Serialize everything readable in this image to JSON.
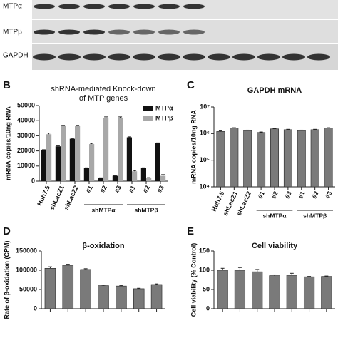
{
  "blot": {
    "labels": [
      "MTPα",
      "MTPβ",
      "GAPDH"
    ]
  },
  "chart_data": [
    {
      "type": "bar",
      "panel": "B",
      "title": [
        "shRNA-mediated Knock-down",
        "of MTP genes"
      ],
      "y_label": "mRNA copies/10ng RNA",
      "categories": [
        "Huh7.5",
        "shLacZ1",
        "shLacZ2",
        "#1",
        "#2",
        "#3",
        "#1",
        "#2",
        "#3"
      ],
      "category_groups": [
        null,
        null,
        null,
        "shMTPα",
        "shMTPα",
        "shMTPα",
        "shMTPβ",
        "shMTPβ",
        "shMTPβ"
      ],
      "series": [
        {
          "name": "MTPα",
          "color": "#111111",
          "values": [
            20500,
            23000,
            28000,
            8500,
            2000,
            3500,
            29000,
            8500,
            25000
          ],
          "errors": [
            300,
            300,
            300,
            300,
            200,
            200,
            300,
            300,
            300
          ]
        },
        {
          "name": "MTPβ",
          "color": "#a8a8a8",
          "values": [
            31000,
            36500,
            36500,
            24500,
            42000,
            42000,
            6500,
            2000,
            3500
          ],
          "errors": [
            800,
            400,
            400,
            500,
            500,
            500,
            500,
            300,
            800
          ]
        }
      ],
      "ylim": [
        0,
        50000
      ],
      "yticks": [
        0,
        10000,
        20000,
        30000,
        40000,
        50000
      ]
    },
    {
      "type": "bar",
      "panel": "C",
      "title": [
        "GAPDH mRNA"
      ],
      "y_label": "mRNA copies/10ng RNA",
      "categories": [
        "Huh7.5",
        "shLacZ1",
        "shLacZ2",
        "#1",
        "#2",
        "#3",
        "#1",
        "#2",
        "#3"
      ],
      "category_groups": [
        null,
        null,
        null,
        "shMTPα",
        "shMTPα",
        "shMTPα",
        "shMTPβ",
        "shMTPβ",
        "shMTPβ"
      ],
      "log_scale": true,
      "color": "#7a7a7a",
      "values": [
        1200000,
        1600000,
        1300000,
        1100000,
        1500000,
        1400000,
        1300000,
        1400000,
        1600000
      ],
      "errors": [
        60000,
        60000,
        50000,
        50000,
        60000,
        50000,
        50000,
        50000,
        60000
      ],
      "ylim": [
        10000,
        10000000
      ],
      "yticks": [
        {
          "value": 10000,
          "label": "10⁴"
        },
        {
          "value": 100000,
          "label": "10⁵"
        },
        {
          "value": 1000000,
          "label": "10⁶"
        },
        {
          "value": 10000000,
          "label": "10⁷"
        }
      ]
    },
    {
      "type": "bar",
      "panel": "D",
      "title": [
        "β-oxidation"
      ],
      "y_label": "Rate of β-oxidation (CPM)",
      "categories": [
        null,
        null,
        null,
        null,
        null,
        null,
        null
      ],
      "color": "#7a7a7a",
      "values": [
        105000,
        113000,
        102000,
        60000,
        59000,
        52000,
        63000
      ],
      "errors": [
        4000,
        2500,
        2000,
        1500,
        1500,
        1200,
        1500
      ],
      "ylim": [
        0,
        150000
      ],
      "yticks": [
        0,
        50000,
        100000,
        150000
      ]
    },
    {
      "type": "bar",
      "panel": "E",
      "title": [
        "Cell viability"
      ],
      "y_label": "Cell viability (% Control)",
      "categories": [
        null,
        null,
        null,
        null,
        null,
        null,
        null
      ],
      "color": "#7a7a7a",
      "values": [
        100,
        100,
        96,
        86,
        87,
        83,
        84
      ],
      "errors": [
        5,
        7,
        6,
        2,
        5,
        1,
        1
      ],
      "ylim": [
        0,
        150
      ],
      "yticks": [
        0,
        50,
        100,
        150
      ]
    }
  ]
}
